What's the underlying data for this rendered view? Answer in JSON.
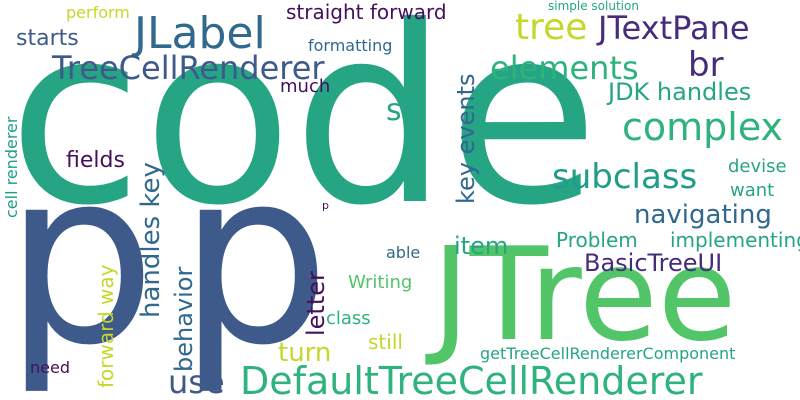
{
  "colors": {
    "background": "#ffffff",
    "teal": "#26a585",
    "teal_light": "#2eb37c",
    "green": "#52c569",
    "lime": "#c5d72a",
    "navy": "#3e5a8a",
    "indigo": "#472c7a",
    "blue": "#31688e",
    "cyan": "#1f9d8a",
    "purple": "#440f5c"
  },
  "words": {
    "code": "code",
    "p_big_1": "p",
    "p_big_2": "p",
    "jtree": "JTree",
    "default_tcr": "DefaultTreeCellRenderer",
    "jlabel": "JLabel",
    "tree_cell_renderer": "TreeCellRenderer",
    "tree": "tree",
    "jtextpane": "JTextPane",
    "br": "br",
    "elements": "elements",
    "complex": "complex",
    "s": "s",
    "straight_forward": "straight forward",
    "perform": "perform",
    "starts": "starts",
    "formatting": "formatting",
    "simple_solution": "simple solution",
    "much": "much",
    "jdk_handles": "JDK handles",
    "subclass": "subclass",
    "navigating": "navigating",
    "fields": "fields",
    "handles_key": "handles key",
    "key_events": "key events",
    "devise": "devise",
    "want": "want",
    "implementing": "implementing",
    "item": "item",
    "problem": "Problem",
    "basic_tree_ui": "BasicTreeUI",
    "letter": "letter",
    "able": "able",
    "writing": "Writing",
    "class": "class",
    "still": "still",
    "turn": "turn",
    "use": "use",
    "behavior": "behavior",
    "forward_way": "forward way",
    "cell_renderer": "cell renderer",
    "need": "need",
    "get_tcr_component": "getTreeCellRendererComponent",
    "p_small": "p"
  }
}
